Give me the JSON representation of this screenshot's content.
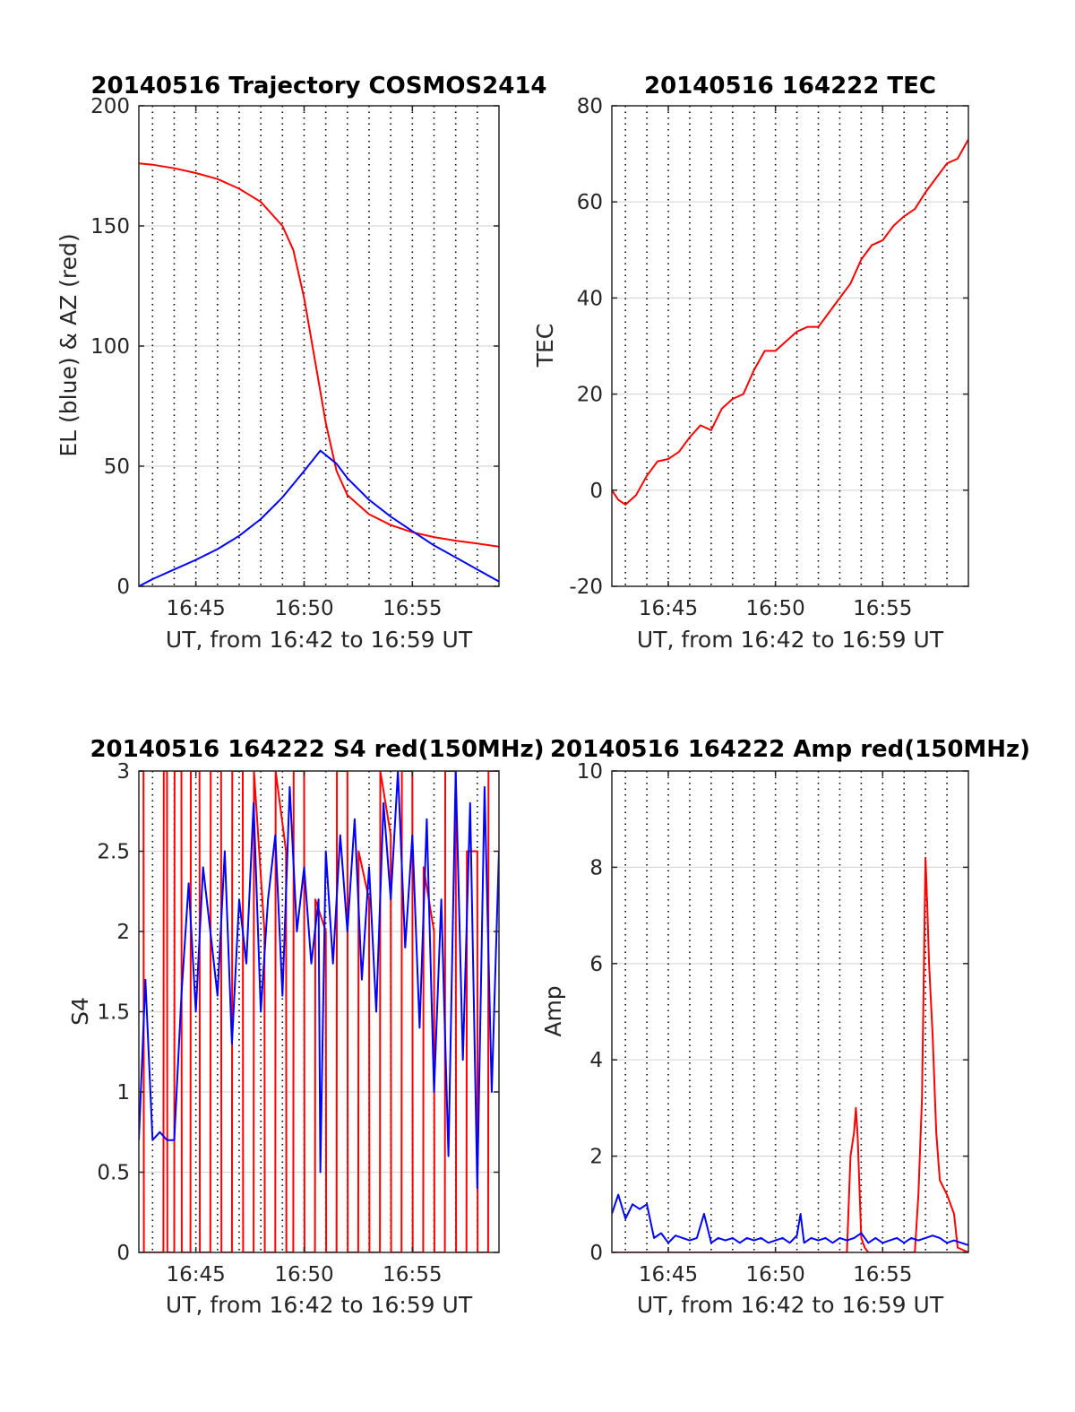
{
  "colors": {
    "red": "#ff0000",
    "blue": "#0000ff",
    "grid": "#d9d9d9",
    "vgrid": "#000000",
    "axis": "#262626"
  },
  "chart_data": [
    {
      "type": "line",
      "title": "20140516 Trajectory COSMOS2414",
      "xlabel": "UT, from 16:42 to 16:59 UT",
      "ylabel": "EL (blue) & AZ (red)",
      "xlim": [
        "16:42:22",
        "16:59:00"
      ],
      "ylim": [
        0,
        200
      ],
      "yticks": [
        0,
        50,
        100,
        150,
        200
      ],
      "xticks": [
        "16:45",
        "16:50",
        "16:55"
      ],
      "grid": "horizontal solid, vertical dotted every minute",
      "series": [
        {
          "color": "red",
          "x": [
            "16:42:22",
            "16:43:00",
            "16:44:00",
            "16:45:00",
            "16:46:00",
            "16:47:00",
            "16:48:00",
            "16:49:00",
            "16:49:30",
            "16:50:00",
            "16:50:30",
            "16:51:00",
            "16:51:30",
            "16:52:00",
            "16:53:00",
            "16:54:00",
            "16:55:00",
            "16:56:00",
            "16:57:00",
            "16:58:00",
            "16:59:00"
          ],
          "values": [
            176,
            175.5,
            174,
            172,
            169.5,
            165.5,
            160,
            150,
            140,
            120,
            94,
            68,
            48,
            38,
            30,
            25.5,
            22.5,
            20.5,
            19,
            17.8,
            16.5
          ]
        },
        {
          "color": "blue",
          "x": [
            "16:42:22",
            "16:43:00",
            "16:44:00",
            "16:45:00",
            "16:46:00",
            "16:47:00",
            "16:48:00",
            "16:49:00",
            "16:50:00",
            "16:50:45",
            "16:51:30",
            "16:52:00",
            "16:53:00",
            "16:54:00",
            "16:55:00",
            "16:56:00",
            "16:57:00",
            "16:58:00",
            "16:59:00"
          ],
          "values": [
            0,
            3,
            7,
            11,
            15.5,
            21,
            28,
            37,
            48,
            56.5,
            51,
            45,
            36,
            29,
            23,
            17,
            12,
            7,
            2
          ]
        }
      ]
    },
    {
      "type": "line",
      "title": "20140516 164222 TEC",
      "xlabel": "UT, from 16:42 to 16:59 UT",
      "ylabel": "TEC",
      "xlim": [
        "16:42:22",
        "16:59:00"
      ],
      "ylim": [
        -20,
        80
      ],
      "yticks": [
        -20,
        0,
        20,
        40,
        60,
        80
      ],
      "xticks": [
        "16:45",
        "16:50",
        "16:55"
      ],
      "series": [
        {
          "color": "red",
          "x": [
            "16:42:22",
            "16:42:40",
            "16:43:00",
            "16:43:30",
            "16:44:00",
            "16:44:30",
            "16:45:00",
            "16:45:30",
            "16:46:00",
            "16:46:30",
            "16:47:00",
            "16:47:30",
            "16:48:00",
            "16:48:30",
            "16:49:00",
            "16:49:30",
            "16:50:00",
            "16:50:30",
            "16:51:00",
            "16:51:30",
            "16:52:00",
            "16:52:30",
            "16:53:00",
            "16:53:30",
            "16:54:00",
            "16:54:30",
            "16:55:00",
            "16:55:30",
            "16:56:00",
            "16:56:30",
            "16:57:00",
            "16:57:30",
            "16:58:00",
            "16:58:30",
            "16:59:00"
          ],
          "values": [
            0,
            -2,
            -3,
            -1,
            3,
            6,
            6.5,
            8,
            11,
            13.5,
            12.5,
            17,
            19,
            20,
            25,
            29,
            29,
            31,
            33,
            34,
            34,
            37,
            40,
            43,
            48,
            51,
            52,
            55,
            57,
            58.5,
            62,
            65,
            68,
            69,
            73
          ]
        }
      ]
    },
    {
      "type": "line",
      "title": "20140516 164222 S4 red(150MHz)",
      "xlabel": "UT, from 16:42 to 16:59 UT",
      "ylabel": "S4",
      "xlim": [
        "16:42:22",
        "16:59:00"
      ],
      "ylim": [
        0,
        3
      ],
      "yticks": [
        0,
        0.5,
        1,
        1.5,
        2,
        2.5,
        3
      ],
      "ytick_labels": [
        "0",
        "0.5",
        "1",
        "1.5",
        "2",
        "2.5",
        "3"
      ],
      "xticks": [
        "16:45",
        "16:50",
        "16:55"
      ],
      "series": [
        {
          "color": "red",
          "x": [
            "16:42:22",
            "16:42:35",
            "16:42:36",
            "16:43:30",
            "16:43:31",
            "16:43:40",
            "16:43:41",
            "16:44:00",
            "16:44:01",
            "16:44:20",
            "16:44:21",
            "16:44:45",
            "16:44:46",
            "16:45:10",
            "16:45:11",
            "16:45:40",
            "16:45:41",
            "16:46:10",
            "16:46:11",
            "16:46:40",
            "16:46:41",
            "16:47:10",
            "16:47:11",
            "16:47:40",
            "16:47:41",
            "16:48:10",
            "16:48:11",
            "16:48:40",
            "16:48:41",
            "16:49:10",
            "16:49:11",
            "16:49:30",
            "16:49:31",
            "16:50:00",
            "16:50:01",
            "16:50:30",
            "16:50:31",
            "16:51:00",
            "16:51:01",
            "16:51:30",
            "16:51:31",
            "16:52:00",
            "16:52:01",
            "16:52:30",
            "16:52:31",
            "16:53:00",
            "16:53:01",
            "16:53:30",
            "16:53:31",
            "16:54:00",
            "16:54:01",
            "16:54:30",
            "16:54:31",
            "16:55:00",
            "16:55:01",
            "16:55:30",
            "16:55:31",
            "16:56:00",
            "16:56:01",
            "16:56:30",
            "16:56:31",
            "16:57:00",
            "16:57:01",
            "16:57:30",
            "16:57:31",
            "16:58:00",
            "16:58:01",
            "16:58:30",
            "16:58:31",
            "16:59:00"
          ],
          "values": [
            3,
            3,
            0,
            0,
            3,
            3,
            0,
            0,
            3,
            3,
            0,
            0,
            3,
            3,
            0,
            0,
            3,
            3,
            0,
            0,
            3,
            3,
            0,
            0,
            3,
            2,
            0,
            0,
            3,
            2.5,
            0,
            0,
            3,
            3,
            0,
            0,
            2.2,
            2,
            0,
            0,
            3,
            3,
            0,
            0,
            2.5,
            2.2,
            0,
            0,
            3,
            2.6,
            0,
            0,
            3,
            3,
            0,
            0,
            2.4,
            2,
            0,
            0,
            3,
            3,
            0,
            0,
            2.5,
            2.5,
            0,
            0,
            3,
            3
          ]
        },
        {
          "color": "blue",
          "x": [
            "16:42:22",
            "16:42:40",
            "16:43:00",
            "16:43:20",
            "16:43:40",
            "16:44:00",
            "16:44:20",
            "16:44:40",
            "16:45:00",
            "16:45:20",
            "16:45:40",
            "16:46:00",
            "16:46:20",
            "16:46:40",
            "16:47:00",
            "16:47:20",
            "16:47:40",
            "16:48:00",
            "16:48:20",
            "16:48:40",
            "16:49:00",
            "16:49:20",
            "16:49:40",
            "16:50:00",
            "16:50:20",
            "16:50:40",
            "16:50:45",
            "16:51:00",
            "16:51:20",
            "16:51:40",
            "16:52:00",
            "16:52:20",
            "16:52:40",
            "16:53:00",
            "16:53:20",
            "16:53:40",
            "16:54:00",
            "16:54:20",
            "16:54:40",
            "16:55:00",
            "16:55:20",
            "16:55:40",
            "16:56:00",
            "16:56:20",
            "16:56:40",
            "16:57:00",
            "16:57:20",
            "16:57:40",
            "16:58:00",
            "16:58:20",
            "16:58:40",
            "16:59:00"
          ],
          "values": [
            0.7,
            1.7,
            0.7,
            0.75,
            0.7,
            0.7,
            1.6,
            2.3,
            1.5,
            2.4,
            2.0,
            1.6,
            2.5,
            1.3,
            2.2,
            1.8,
            2.8,
            1.5,
            2.2,
            2.6,
            1.6,
            2.9,
            2.0,
            2.4,
            1.8,
            2.2,
            0.5,
            2.5,
            1.8,
            2.6,
            2.0,
            2.7,
            1.7,
            2.4,
            1.5,
            2.8,
            2.2,
            3.0,
            1.9,
            2.6,
            1.4,
            2.7,
            1.0,
            2.2,
            0.6,
            3.0,
            1.2,
            2.8,
            0.4,
            2.9,
            1.0,
            2.5
          ]
        }
      ]
    },
    {
      "type": "line",
      "title": "20140516 164222 Amp red(150MHz)",
      "xlabel": "UT, from 16:42 to 16:59 UT",
      "ylabel": "Amp",
      "xlim": [
        "16:42:22",
        "16:59:00"
      ],
      "ylim": [
        0,
        10
      ],
      "yticks": [
        0,
        2,
        4,
        6,
        8,
        10
      ],
      "xticks": [
        "16:45",
        "16:50",
        "16:55"
      ],
      "series": [
        {
          "color": "red",
          "x": [
            "16:42:22",
            "16:53:20",
            "16:53:30",
            "16:53:40",
            "16:53:45",
            "16:53:50",
            "16:54:00",
            "16:54:10",
            "16:54:20",
            "16:56:30",
            "16:56:40",
            "16:56:50",
            "16:57:00",
            "16:57:05",
            "16:57:10",
            "16:57:20",
            "16:57:30",
            "16:57:40",
            "16:58:00",
            "16:58:20",
            "16:58:30",
            "16:59:00"
          ],
          "values": [
            0,
            0,
            2.0,
            2.5,
            3.0,
            2.4,
            0.3,
            0.1,
            0,
            0,
            1.2,
            3.2,
            8.2,
            7.2,
            6.0,
            4.5,
            2.5,
            1.5,
            1.2,
            0.8,
            0.1,
            0
          ]
        },
        {
          "color": "blue",
          "x": [
            "16:42:22",
            "16:42:40",
            "16:43:00",
            "16:43:20",
            "16:43:40",
            "16:44:00",
            "16:44:20",
            "16:44:40",
            "16:45:00",
            "16:45:20",
            "16:45:40",
            "16:46:00",
            "16:46:20",
            "16:46:40",
            "16:47:00",
            "16:47:20",
            "16:47:40",
            "16:48:00",
            "16:48:20",
            "16:48:40",
            "16:49:00",
            "16:49:20",
            "16:49:40",
            "16:50:00",
            "16:50:20",
            "16:50:40",
            "16:51:00",
            "16:51:10",
            "16:51:20",
            "16:51:40",
            "16:52:00",
            "16:52:20",
            "16:52:40",
            "16:53:00",
            "16:53:20",
            "16:53:40",
            "16:54:00",
            "16:54:20",
            "16:54:40",
            "16:55:00",
            "16:55:20",
            "16:55:40",
            "16:56:00",
            "16:56:20",
            "16:56:40",
            "16:57:00",
            "16:57:20",
            "16:57:40",
            "16:58:00",
            "16:58:20",
            "16:58:40",
            "16:59:00"
          ],
          "values": [
            0.8,
            1.2,
            0.7,
            1.0,
            0.9,
            1.0,
            0.3,
            0.4,
            0.2,
            0.35,
            0.3,
            0.25,
            0.3,
            0.8,
            0.2,
            0.3,
            0.25,
            0.3,
            0.2,
            0.3,
            0.25,
            0.3,
            0.2,
            0.25,
            0.3,
            0.2,
            0.35,
            0.8,
            0.2,
            0.3,
            0.25,
            0.3,
            0.2,
            0.3,
            0.25,
            0.3,
            0.4,
            0.2,
            0.3,
            0.2,
            0.25,
            0.3,
            0.2,
            0.3,
            0.25,
            0.3,
            0.35,
            0.3,
            0.2,
            0.25,
            0.2,
            0.15
          ]
        }
      ]
    }
  ]
}
